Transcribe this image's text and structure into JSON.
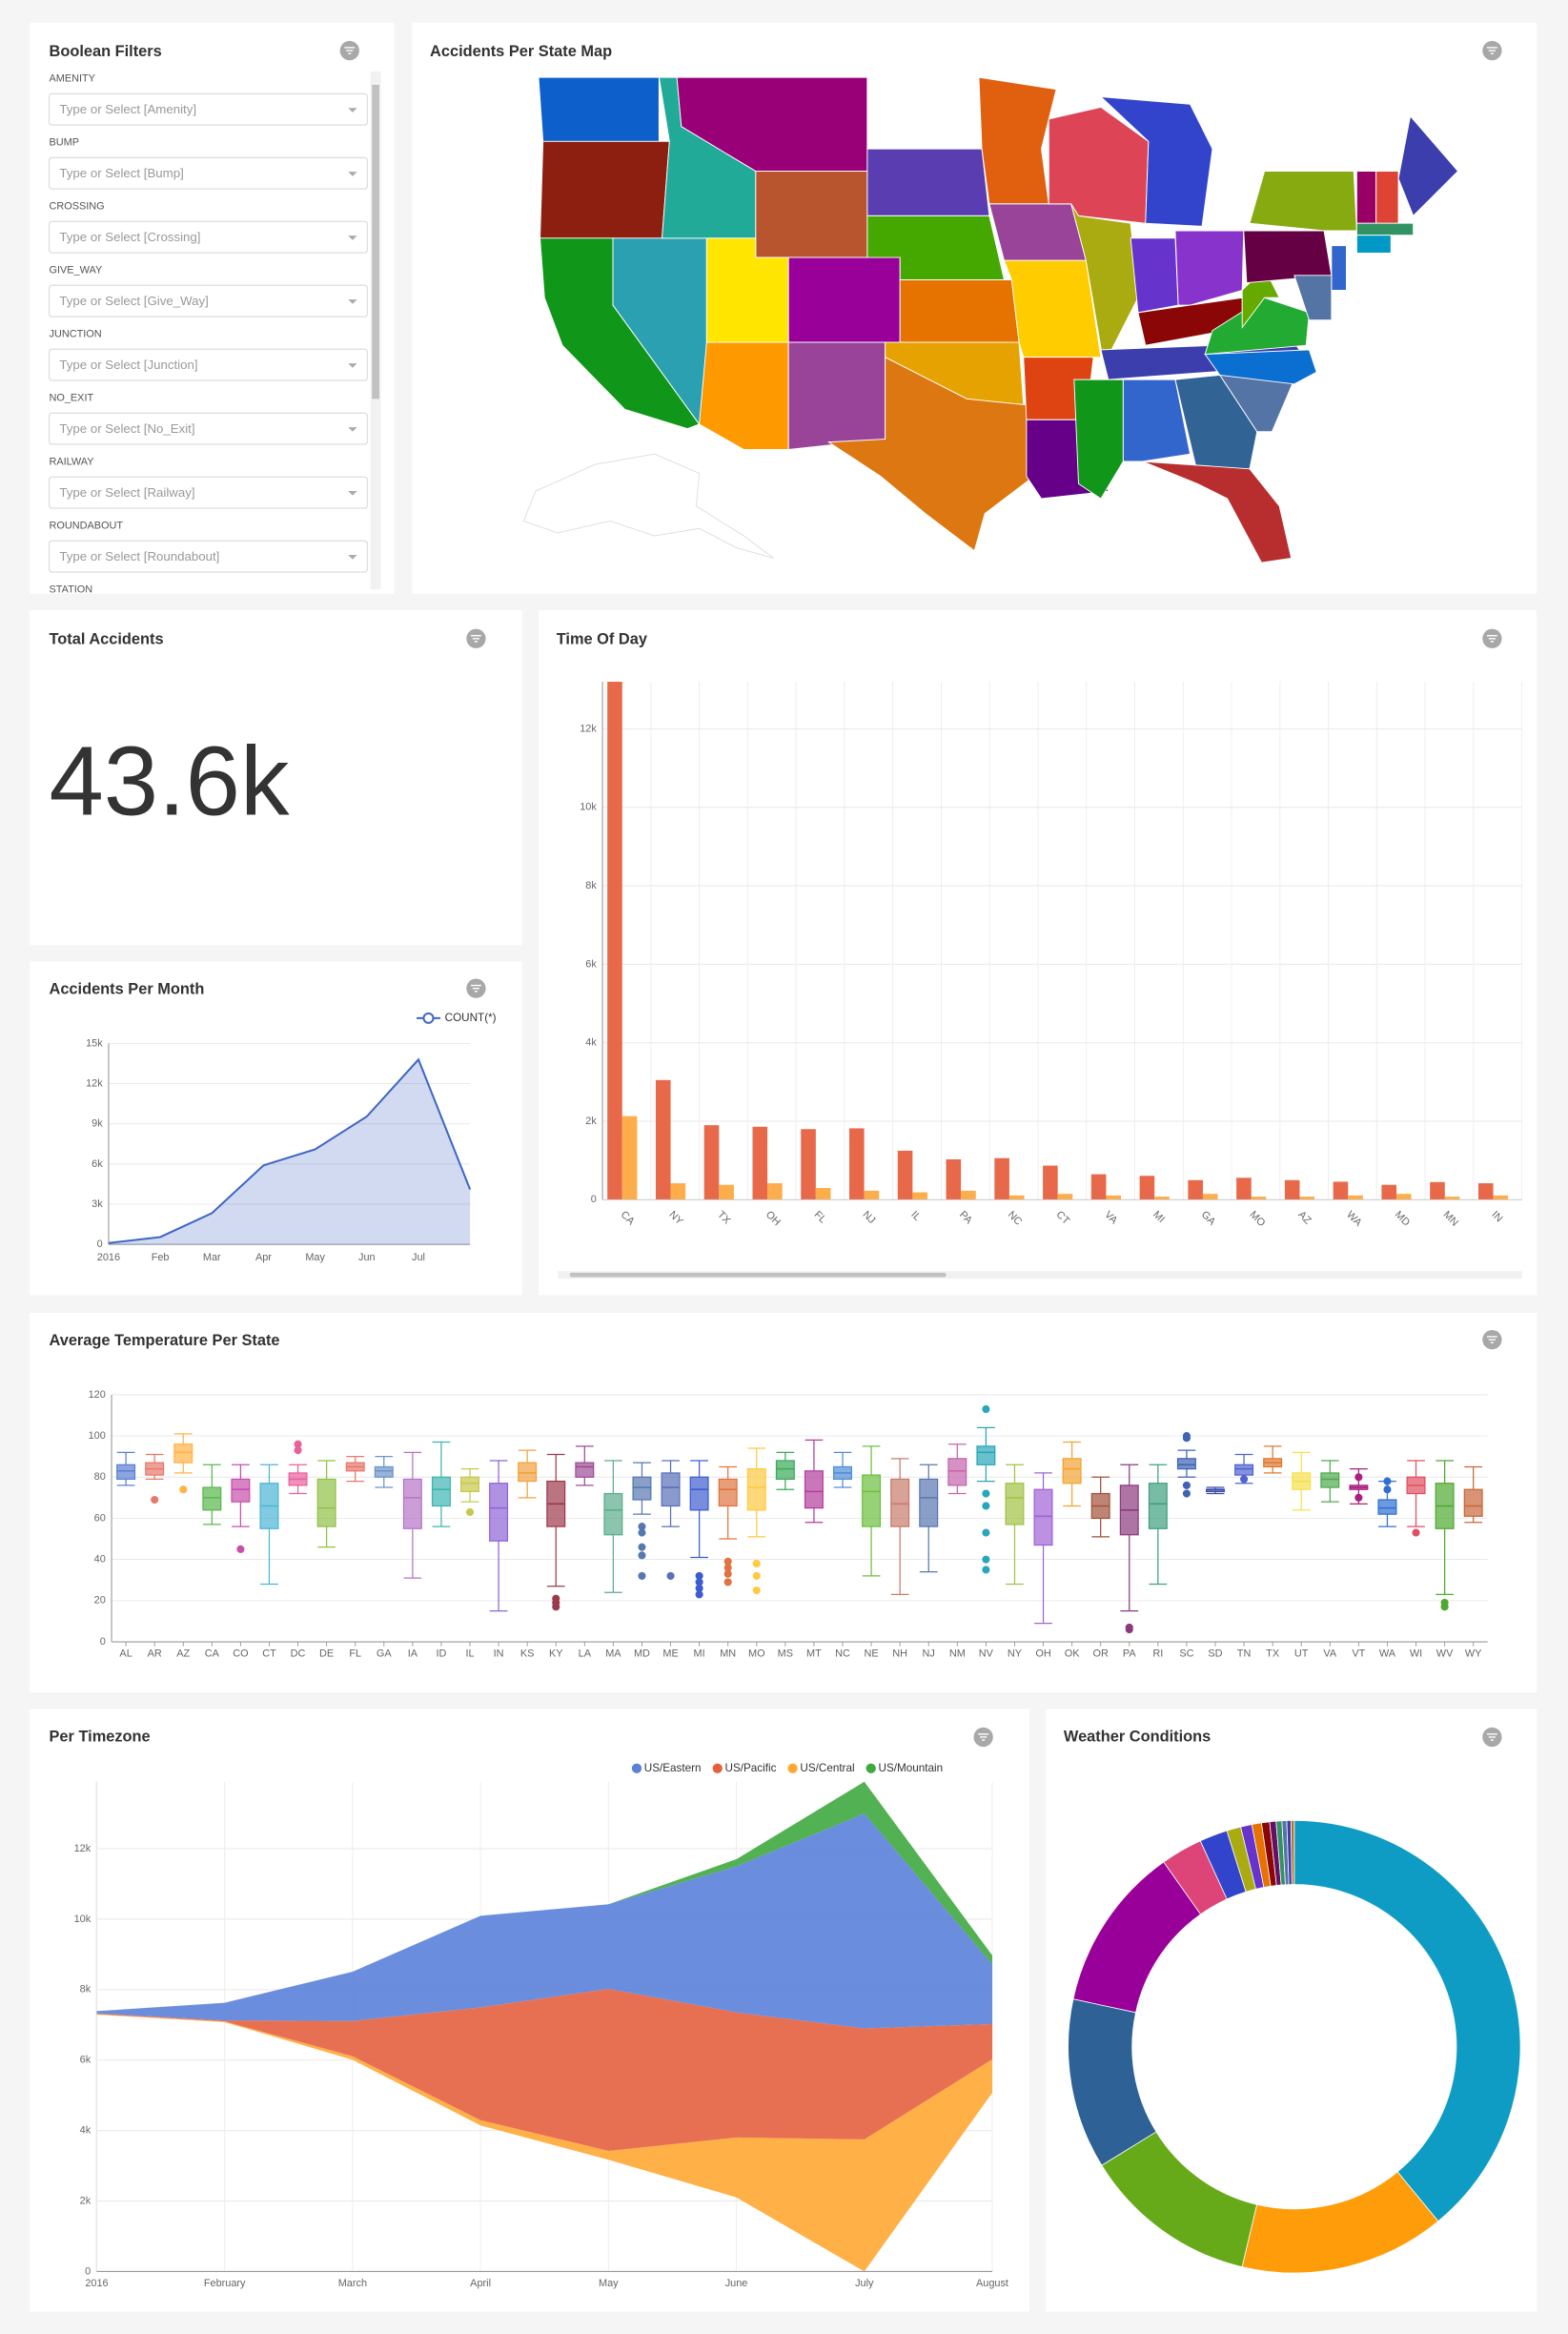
{
  "filters": {
    "title": "Boolean Filters",
    "fields": [
      {
        "label": "AMENITY",
        "placeholder": "Type or Select [Amenity]"
      },
      {
        "label": "BUMP",
        "placeholder": "Type or Select [Bump]"
      },
      {
        "label": "CROSSING",
        "placeholder": "Type or Select [Crossing]"
      },
      {
        "label": "GIVE_WAY",
        "placeholder": "Type or Select [Give_Way]"
      },
      {
        "label": "JUNCTION",
        "placeholder": "Type or Select [Junction]"
      },
      {
        "label": "NO_EXIT",
        "placeholder": "Type or Select [No_Exit]"
      },
      {
        "label": "RAILWAY",
        "placeholder": "Type or Select [Railway]"
      },
      {
        "label": "ROUNDABOUT",
        "placeholder": "Type or Select [Roundabout]"
      },
      {
        "label": "STATION"
      }
    ]
  },
  "map": {
    "title": "Accidents Per State Map"
  },
  "total": {
    "title": "Total Accidents",
    "value": "43.6k"
  },
  "chart_data": [
    {
      "type": "bar",
      "title": "Time Of Day",
      "categories": [
        "CA",
        "NY",
        "TX",
        "OH",
        "FL",
        "NJ",
        "IL",
        "PA",
        "NC",
        "CT",
        "VA",
        "MI",
        "GA",
        "MO",
        "AZ",
        "WA",
        "MD",
        "MN",
        "IN"
      ],
      "series": [
        {
          "color": "#e8694a",
          "values": [
            13200,
            3050,
            1900,
            1860,
            1800,
            1820,
            1250,
            1030,
            1060,
            870,
            650,
            610,
            500,
            560,
            500,
            460,
            380,
            450,
            420
          ]
        },
        {
          "color": "#fdae4b",
          "values": [
            2130,
            420,
            380,
            420,
            300,
            230,
            190,
            230,
            110,
            150,
            110,
            80,
            150,
            80,
            80,
            110,
            150,
            80,
            110
          ]
        }
      ],
      "ylim": [
        0,
        13200
      ],
      "yticks": [
        0,
        {
          "value": 2000,
          "label": "2k"
        },
        {
          "value": 4000,
          "label": "4k"
        },
        {
          "value": 6000,
          "label": "6k"
        },
        {
          "value": 8000,
          "label": "8k"
        },
        {
          "value": 10000,
          "label": "10k"
        },
        {
          "value": 12000,
          "label": "12k"
        }
      ],
      "grid": true
    },
    {
      "type": "line",
      "title": "Accidents Per Month",
      "categories": [
        "2016",
        "Feb",
        "Mar",
        "Apr",
        "May",
        "Jun",
        "Jul",
        null
      ],
      "series": [
        {
          "name": "COUNT(*)",
          "color": "#3f66c4",
          "values": [
            100,
            550,
            2330,
            5900,
            7100,
            9550,
            13800,
            4100
          ]
        }
      ],
      "area": true,
      "ylim": [
        0,
        15000
      ],
      "yticks": [
        0,
        {
          "value": 3000,
          "label": "3k"
        },
        {
          "value": 6000,
          "label": "6k"
        },
        {
          "value": 9000,
          "label": "9k"
        },
        {
          "value": 12000,
          "label": "12k"
        },
        {
          "value": 15000,
          "label": "15k"
        }
      ],
      "grid": true
    },
    {
      "type": "box",
      "title": "Average Temperature Per State",
      "categories": [
        "AL",
        "AR",
        "AZ",
        "CA",
        "CO",
        "CT",
        "DC",
        "DE",
        "FL",
        "GA",
        "IA",
        "ID",
        "IL",
        "IN",
        "KS",
        "KY",
        "LA",
        "MA",
        "MD",
        "ME",
        "MI",
        "MN",
        "MO",
        "MS",
        "MT",
        "NC",
        "NE",
        "NH",
        "NJ",
        "NM",
        "NV",
        "NY",
        "OH",
        "OK",
        "OR",
        "PA",
        "RI",
        "SC",
        "SD",
        "TN",
        "TX",
        "UT",
        "VA",
        "VT",
        "WA",
        "WI",
        "WV",
        "WY"
      ],
      "colors": [
        "#5b7fd6",
        "#e8786a",
        "#ffb347",
        "#59b84d",
        "#c84faa",
        "#4bb5d5",
        "#e8619c",
        "#91c146",
        "#e8786a",
        "#6b94c8",
        "#b575c8",
        "#3db5b0",
        "#c8c84c",
        "#8e64d8",
        "#f2a13f",
        "#9c3a4c",
        "#9c4c94",
        "#5aad8c",
        "#5678b0",
        "#5a6fb8",
        "#3d5cd0",
        "#e0733f",
        "#ffc940",
        "#3aaa5a",
        "#b43d9c",
        "#4f8ed6",
        "#6cbf3d",
        "#c87a6a",
        "#5876b0",
        "#c464ab",
        "#29a6b8",
        "#a1c245",
        "#9f63d6",
        "#f2a330",
        "#a3513a",
        "#8c3a7e",
        "#3f9f80",
        "#3f63b5",
        "#3a4ca8",
        "#4f63d0",
        "#e0782f",
        "#f5e14b",
        "#4faa4f",
        "#aa1f7f",
        "#2f6fd0",
        "#e04f5f",
        "#4faa2f",
        "#c8673a"
      ],
      "values": [
        [
          76,
          79,
          83,
          86,
          92
        ],
        [
          79,
          81,
          84,
          87,
          91
        ],
        [
          82,
          87,
          92,
          96,
          101
        ],
        [
          57,
          64,
          70,
          75,
          86
        ],
        [
          56,
          68,
          74,
          79,
          86
        ],
        [
          28,
          55,
          66,
          77,
          86
        ],
        [
          72,
          76,
          79,
          82,
          86
        ],
        [
          46,
          56,
          65,
          79,
          88
        ],
        [
          78,
          83,
          85,
          87,
          90
        ],
        [
          75,
          80,
          83,
          85,
          90
        ],
        [
          31,
          55,
          70,
          79,
          92
        ],
        [
          56,
          66,
          74,
          80,
          97
        ],
        [
          68,
          73,
          77,
          80,
          84
        ],
        [
          15,
          49,
          65,
          77,
          88
        ],
        [
          70,
          78,
          82,
          87,
          93
        ],
        [
          27,
          56,
          67,
          78,
          91
        ],
        [
          76,
          80,
          85,
          87,
          95
        ],
        [
          24,
          52,
          64,
          72,
          88
        ],
        [
          62,
          69,
          75,
          80,
          87
        ],
        [
          56,
          66,
          75,
          82,
          88
        ],
        [
          41,
          64,
          74,
          80,
          88
        ],
        [
          50,
          66,
          74,
          79,
          85
        ],
        [
          51,
          64,
          75,
          84,
          94
        ],
        [
          74,
          79,
          84,
          88,
          92
        ],
        [
          58,
          65,
          73,
          83,
          98
        ],
        [
          75,
          79,
          82,
          85,
          92
        ],
        [
          32,
          56,
          73,
          81,
          95
        ],
        [
          23,
          56,
          67,
          79,
          89
        ],
        [
          34,
          56,
          70,
          79,
          86
        ],
        [
          72,
          76,
          83,
          89,
          96
        ],
        [
          78,
          86,
          92,
          95,
          104
        ],
        [
          28,
          57,
          70,
          77,
          86
        ],
        [
          9,
          47,
          61,
          74,
          82
        ],
        [
          66,
          77,
          84,
          89,
          97
        ],
        [
          51,
          60,
          66,
          72,
          80
        ],
        [
          15,
          52,
          64,
          76,
          86
        ],
        [
          28,
          55,
          67,
          77,
          86
        ],
        [
          80,
          84,
          86,
          89,
          93
        ],
        [
          72,
          73,
          74,
          74,
          75
        ],
        [
          77,
          81,
          84,
          86,
          91
        ],
        [
          82,
          85,
          87,
          89,
          95
        ],
        [
          64,
          74,
          78,
          82,
          92
        ],
        [
          68,
          75,
          79,
          82,
          88
        ],
        [
          67,
          74,
          75,
          76,
          84
        ],
        [
          56,
          62,
          65,
          69,
          78
        ],
        [
          56,
          72,
          76,
          80,
          88
        ],
        [
          23,
          55,
          66,
          77,
          88
        ],
        [
          58,
          61,
          66,
          74,
          85
        ]
      ],
      "outliers": [
        [],
        [
          69
        ],
        [
          74
        ],
        [],
        [
          45
        ],
        [],
        [
          93,
          96
        ],
        [],
        [],
        [],
        [],
        [],
        [
          63
        ],
        [],
        [],
        [
          17,
          19,
          21
        ],
        [],
        [],
        [
          32,
          42,
          46,
          53,
          56
        ],
        [
          32
        ],
        [
          23,
          26,
          29,
          32
        ],
        [
          29,
          33,
          36,
          39
        ],
        [
          25,
          32,
          38
        ],
        [],
        [],
        [],
        [],
        [],
        [],
        [],
        [
          35,
          40,
          53,
          66,
          72,
          113
        ],
        [],
        [],
        [],
        [],
        [
          6,
          7
        ],
        [],
        [
          72,
          76,
          99,
          100
        ],
        [],
        [
          79
        ],
        [],
        [],
        [],
        [
          70,
          80
        ],
        [
          74,
          78
        ],
        [
          53
        ],
        [
          17,
          19
        ],
        []
      ],
      "ylim": [
        0,
        120
      ],
      "yticks": [
        0,
        20,
        40,
        60,
        80,
        100,
        120
      ],
      "grid": true
    },
    {
      "type": "area",
      "title": "Per Timezone",
      "categories": [
        "2016",
        "February",
        "March",
        "April",
        "May",
        "June",
        "July",
        "August"
      ],
      "series": [
        {
          "name": "US/Eastern",
          "color": "#5b81d9",
          "values": [
            60,
            500,
            1400,
            2600,
            2400,
            4150,
            6100,
            1700
          ]
        },
        {
          "name": "US/Pacific",
          "color": "#e5603f",
          "values": [
            20,
            30,
            1000,
            3200,
            4600,
            3550,
            3150,
            1000
          ]
        },
        {
          "name": "US/Central",
          "color": "#ffa733",
          "values": [
            15,
            20,
            100,
            150,
            250,
            1700,
            3750,
            950
          ]
        },
        {
          "name": "US/Mountain",
          "color": "#3fa83f",
          "values": [
            5,
            0,
            0,
            0,
            0,
            200,
            900,
            250
          ]
        }
      ],
      "stacked": true,
      "ylim": [
        0,
        13900
      ],
      "yticks": [
        0,
        {
          "value": 2000,
          "label": "2k"
        },
        {
          "value": 4000,
          "label": "4k"
        },
        {
          "value": 6000,
          "label": "6k"
        },
        {
          "value": 8000,
          "label": "8k"
        },
        {
          "value": 10000,
          "label": "10k"
        },
        {
          "value": 12000,
          "label": "12k"
        }
      ],
      "grid": true
    },
    {
      "type": "donut",
      "title": "Weather Conditions",
      "values": [
        17000,
        6400,
        5450,
        5300,
        5150,
        1300,
        870,
        440,
        350,
        300,
        250,
        200,
        180,
        150,
        130,
        100
      ],
      "colors": [
        "#0e9cc4",
        "#ff9c0a",
        "#66aa1a",
        "#2e6196",
        "#990099",
        "#dd4477",
        "#3344cc",
        "#aaaa11",
        "#6633cc",
        "#e67300",
        "#8b0707",
        "#651067",
        "#329262",
        "#5574a6",
        "#3b3eac",
        "#b77322"
      ]
    }
  ]
}
